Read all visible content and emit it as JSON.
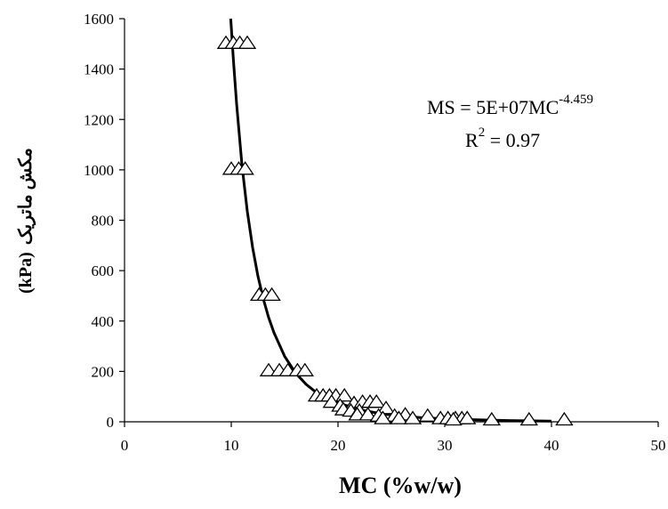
{
  "chart_data": {
    "type": "scatter",
    "xlabel": "MC (%w/w)",
    "ylabel": "مکش ماتریک (kPa)",
    "ylabel_fa": "مکش ماتریک",
    "ylabel_unit": "(kPa)",
    "xlim": [
      0,
      50
    ],
    "ylim": [
      0,
      1600
    ],
    "x_ticks": [
      "0",
      "10",
      "20",
      "30",
      "40",
      "50"
    ],
    "y_ticks": [
      "0",
      "200",
      "400",
      "600",
      "800",
      "1000",
      "1200",
      "1400",
      "1600"
    ],
    "grid": false,
    "legend": "none",
    "equation": {
      "line1_main": "MS = 5E+07MC",
      "line1_sup": "-4.459",
      "line2_main": "R",
      "line2_sup": "2",
      "line2_rest": " = 0.97"
    },
    "series": [
      {
        "marker": "triangle-open",
        "points": [
          [
            9.5,
            1500
          ],
          [
            10.2,
            1500
          ],
          [
            10.8,
            1500
          ],
          [
            11.5,
            1500
          ],
          [
            10.0,
            1000
          ],
          [
            10.7,
            1000
          ],
          [
            11.3,
            1000
          ],
          [
            12.6,
            500
          ],
          [
            13.2,
            500
          ],
          [
            13.8,
            500
          ],
          [
            13.5,
            200
          ],
          [
            14.5,
            200
          ],
          [
            15.3,
            200
          ],
          [
            16.2,
            200
          ],
          [
            16.9,
            200
          ],
          [
            18.0,
            100
          ],
          [
            18.6,
            100
          ],
          [
            19.2,
            100
          ],
          [
            19.8,
            100
          ],
          [
            20.6,
            100
          ],
          [
            19.4,
            75
          ],
          [
            20.2,
            60
          ],
          [
            21.5,
            70
          ],
          [
            22.3,
            75
          ],
          [
            23.0,
            75
          ],
          [
            23.6,
            75
          ],
          [
            20.5,
            45
          ],
          [
            21.2,
            40
          ],
          [
            22.0,
            40
          ],
          [
            24.5,
            50
          ],
          [
            21.8,
            25
          ],
          [
            22.8,
            25
          ],
          [
            23.8,
            20
          ],
          [
            25.3,
            20
          ],
          [
            26.3,
            25
          ],
          [
            28.4,
            20
          ],
          [
            24.2,
            10
          ],
          [
            25.7,
            10
          ],
          [
            27.0,
            10
          ],
          [
            29.6,
            10
          ],
          [
            30.3,
            10
          ],
          [
            31.0,
            10
          ],
          [
            31.6,
            10
          ],
          [
            32.1,
            10
          ],
          [
            30.8,
            5
          ],
          [
            34.4,
            5
          ],
          [
            37.9,
            5
          ],
          [
            41.2,
            5
          ]
        ]
      },
      {
        "type": "line",
        "equation_coefficients": {
          "a": 50000000,
          "b": -4.459
        },
        "x": [
          9.95,
          10.2,
          10.5,
          11,
          11.5,
          12,
          12.5,
          13,
          13.5,
          14,
          15,
          16,
          17,
          18,
          19,
          20,
          22,
          24,
          26,
          28,
          30,
          33,
          36,
          40
        ],
        "y": [
          1600,
          1436,
          1262,
          1020,
          836,
          692,
          578,
          488,
          414,
          354,
          260,
          195,
          149,
          115,
          90,
          75,
          48,
          32,
          22,
          16,
          12,
          8,
          5,
          3
        ]
      }
    ]
  }
}
